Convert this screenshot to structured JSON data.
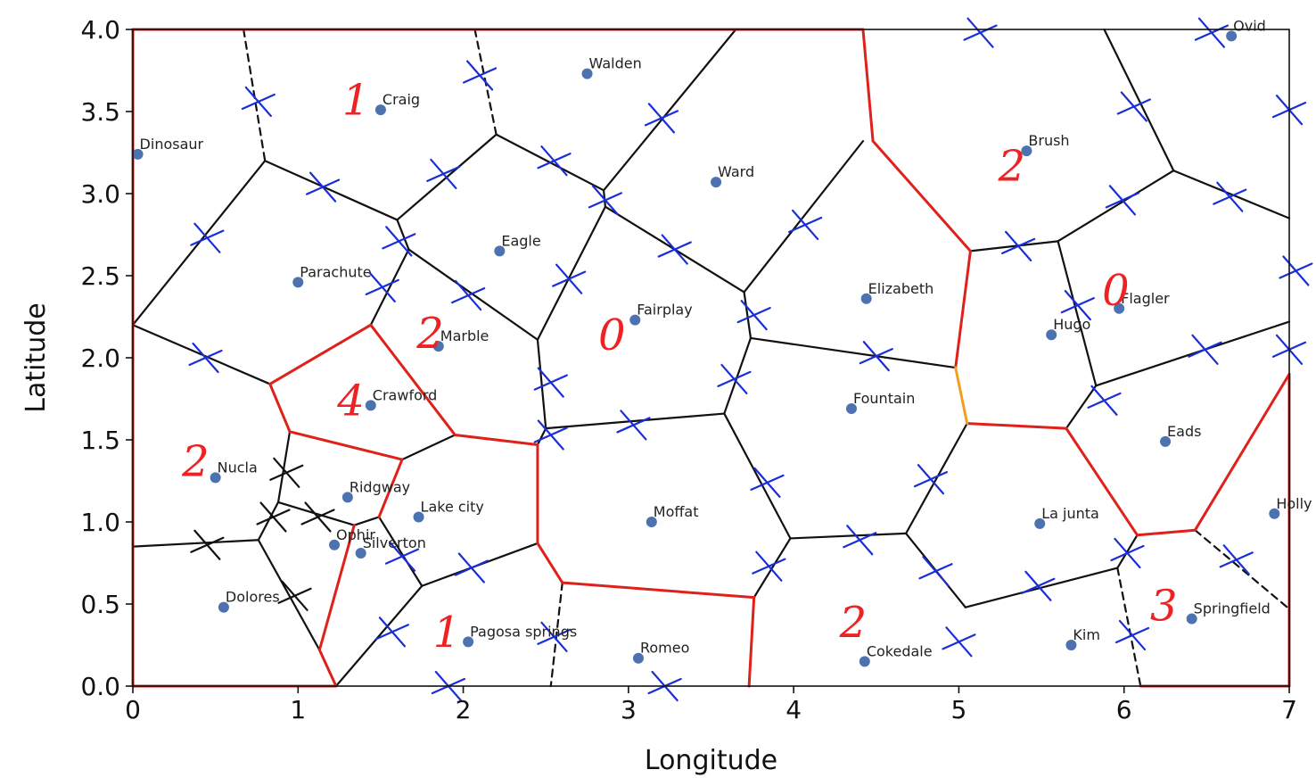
{
  "chart_data": {
    "type": "scatter",
    "xlabel": "Longitude",
    "ylabel": "Latitude",
    "xlim": [
      0,
      7
    ],
    "ylim": [
      0,
      4
    ],
    "xticks": [
      "0",
      "1",
      "2",
      "3",
      "4",
      "5",
      "6",
      "7"
    ],
    "yticks": [
      "0.0",
      "0.5",
      "1.0",
      "1.5",
      "2.0",
      "2.5",
      "3.0",
      "3.5",
      "4.0"
    ],
    "xtick_values": [
      0,
      1,
      2,
      3,
      4,
      5,
      6,
      7
    ],
    "ytick_values": [
      0,
      0.5,
      1,
      1.5,
      2,
      2.5,
      3,
      3.5,
      4
    ],
    "grid": false,
    "point_color": "#4c72b0",
    "points": [
      {
        "name": "Dinosaur",
        "x": 0.03,
        "y": 3.24
      },
      {
        "name": "Craig",
        "x": 1.5,
        "y": 3.51
      },
      {
        "name": "Walden",
        "x": 2.75,
        "y": 3.73
      },
      {
        "name": "Ovid",
        "x": 6.65,
        "y": 3.96
      },
      {
        "name": "Brush",
        "x": 5.41,
        "y": 3.26
      },
      {
        "name": "Ward",
        "x": 3.53,
        "y": 3.07
      },
      {
        "name": "Eagle",
        "x": 2.22,
        "y": 2.65
      },
      {
        "name": "Parachute",
        "x": 1.0,
        "y": 2.46
      },
      {
        "name": "Elizabeth",
        "x": 4.44,
        "y": 2.36
      },
      {
        "name": "Flagler",
        "x": 5.97,
        "y": 2.3
      },
      {
        "name": "Fairplay",
        "x": 3.04,
        "y": 2.23
      },
      {
        "name": "Hugo",
        "x": 5.56,
        "y": 2.14
      },
      {
        "name": "Marble",
        "x": 1.85,
        "y": 2.07
      },
      {
        "name": "Crawford",
        "x": 1.44,
        "y": 1.71
      },
      {
        "name": "Fountain",
        "x": 4.35,
        "y": 1.69
      },
      {
        "name": "Eads",
        "x": 6.25,
        "y": 1.49
      },
      {
        "name": "Nucla",
        "x": 0.5,
        "y": 1.27
      },
      {
        "name": "Ridgway",
        "x": 1.3,
        "y": 1.15
      },
      {
        "name": "Holly",
        "x": 6.91,
        "y": 1.05
      },
      {
        "name": "Lake city",
        "x": 1.73,
        "y": 1.03
      },
      {
        "name": "Moffat",
        "x": 3.14,
        "y": 1.0
      },
      {
        "name": "La junta",
        "x": 5.49,
        "y": 0.99
      },
      {
        "name": "Ophir",
        "x": 1.22,
        "y": 0.86
      },
      {
        "name": "Silverton",
        "x": 1.38,
        "y": 0.81
      },
      {
        "name": "Dolores",
        "x": 0.55,
        "y": 0.48
      },
      {
        "name": "Springfield",
        "x": 6.41,
        "y": 0.41
      },
      {
        "name": "Pagosa springs",
        "x": 2.03,
        "y": 0.27
      },
      {
        "name": "Kim",
        "x": 5.68,
        "y": 0.25
      },
      {
        "name": "Romeo",
        "x": 3.06,
        "y": 0.17
      },
      {
        "name": "Cokedale",
        "x": 4.43,
        "y": 0.15
      }
    ],
    "voronoi_edges_solid": [
      [
        [
          0,
          2.2
        ],
        [
          0.8,
          3.2
        ]
      ],
      [
        [
          0.8,
          3.2
        ],
        [
          1.6,
          2.84
        ]
      ],
      [
        [
          1.6,
          2.84
        ],
        [
          2.2,
          3.36
        ]
      ],
      [
        [
          2.2,
          3.36
        ],
        [
          2.85,
          3.02
        ]
      ],
      [
        [
          2.85,
          3.02
        ],
        [
          3.65,
          4.0
        ]
      ],
      [
        [
          1.6,
          2.84
        ],
        [
          1.67,
          2.66
        ]
      ],
      [
        [
          1.67,
          2.66
        ],
        [
          1.44,
          2.2
        ]
      ],
      [
        [
          1.67,
          2.66
        ],
        [
          2.45,
          2.11
        ]
      ],
      [
        [
          2.45,
          2.11
        ],
        [
          2.86,
          2.92
        ]
      ],
      [
        [
          2.86,
          2.92
        ],
        [
          2.85,
          3.02
        ]
      ],
      [
        [
          2.86,
          2.92
        ],
        [
          3.7,
          2.4
        ]
      ],
      [
        [
          3.7,
          2.4
        ],
        [
          4.42,
          3.32
        ]
      ],
      [
        [
          3.7,
          2.4
        ],
        [
          3.74,
          2.12
        ]
      ],
      [
        [
          3.74,
          2.12
        ],
        [
          4.98,
          1.94
        ]
      ],
      [
        [
          3.74,
          2.12
        ],
        [
          3.58,
          1.66
        ]
      ],
      [
        [
          2.45,
          2.11
        ],
        [
          2.5,
          1.57
        ]
      ],
      [
        [
          2.5,
          1.57
        ],
        [
          3.58,
          1.66
        ]
      ],
      [
        [
          3.58,
          1.66
        ],
        [
          3.98,
          0.9
        ]
      ],
      [
        [
          3.98,
          0.9
        ],
        [
          4.68,
          0.93
        ]
      ],
      [
        [
          3.98,
          0.9
        ],
        [
          3.76,
          0.54
        ]
      ],
      [
        [
          4.68,
          0.93
        ],
        [
          5.05,
          1.6
        ]
      ],
      [
        [
          4.68,
          0.93
        ],
        [
          5.04,
          0.48
        ]
      ],
      [
        [
          5.04,
          0.48
        ],
        [
          5.96,
          0.72
        ]
      ],
      [
        [
          5.96,
          0.72
        ],
        [
          6.08,
          0.92
        ]
      ],
      [
        [
          0,
          2.2
        ],
        [
          0.83,
          1.84
        ]
      ],
      [
        [
          0.83,
          1.84
        ],
        [
          0.95,
          1.55
        ]
      ],
      [
        [
          0.95,
          1.55
        ],
        [
          0.88,
          1.12
        ]
      ],
      [
        [
          0.88,
          1.12
        ],
        [
          0.76,
          0.89
        ]
      ],
      [
        [
          0.76,
          0.89
        ],
        [
          0,
          0.85
        ]
      ],
      [
        [
          0.76,
          0.89
        ],
        [
          1.13,
          0.22
        ]
      ],
      [
        [
          0.88,
          1.12
        ],
        [
          1.34,
          0.98
        ]
      ],
      [
        [
          1.34,
          0.98
        ],
        [
          1.49,
          1.03
        ]
      ],
      [
        [
          1.49,
          1.03
        ],
        [
          1.63,
          1.38
        ]
      ],
      [
        [
          1.49,
          1.03
        ],
        [
          1.75,
          0.61
        ]
      ],
      [
        [
          1.75,
          0.61
        ],
        [
          1.23,
          0.0
        ]
      ],
      [
        [
          1.75,
          0.61
        ],
        [
          2.45,
          0.87
        ]
      ],
      [
        [
          1.63,
          1.38
        ],
        [
          1.95,
          1.53
        ]
      ],
      [
        [
          1.95,
          1.53
        ],
        [
          2.45,
          1.47
        ]
      ],
      [
        [
          2.45,
          1.47
        ],
        [
          2.5,
          1.57
        ]
      ],
      [
        [
          3.74,
          2.12
        ],
        [
          3.74,
          2.12
        ]
      ],
      [
        [
          5.6,
          2.71
        ],
        [
          5.07,
          2.65
        ]
      ],
      [
        [
          5.6,
          2.71
        ],
        [
          6.3,
          3.14
        ]
      ],
      [
        [
          5.6,
          2.71
        ],
        [
          5.83,
          1.83
        ]
      ],
      [
        [
          5.83,
          1.83
        ],
        [
          5.65,
          1.57
        ]
      ],
      [
        [
          5.83,
          1.83
        ],
        [
          7.0,
          2.22
        ]
      ],
      [
        [
          6.3,
          3.14
        ],
        [
          7.0,
          2.85
        ]
      ],
      [
        [
          6.3,
          3.14
        ],
        [
          5.88,
          4.0
        ]
      ]
    ],
    "voronoi_edges_dashed": [
      [
        [
          0.67,
          4.0
        ],
        [
          0.8,
          3.2
        ]
      ],
      [
        [
          2.07,
          4.0
        ],
        [
          2.2,
          3.36
        ]
      ],
      [
        [
          2.6,
          0.63
        ],
        [
          2.53,
          0.0
        ]
      ],
      [
        [
          5.96,
          0.72
        ],
        [
          6.1,
          0.0
        ]
      ],
      [
        [
          6.43,
          0.95
        ],
        [
          7.0,
          0.47
        ]
      ]
    ],
    "red_edges": [
      [
        [
          0,
          4.0
        ],
        [
          4.42,
          4.0
        ]
      ],
      [
        [
          4.42,
          4.0
        ],
        [
          4.48,
          3.32
        ]
      ],
      [
        [
          4.48,
          3.32
        ],
        [
          5.07,
          2.65
        ]
      ],
      [
        [
          5.07,
          2.65
        ],
        [
          4.98,
          1.94
        ]
      ],
      [
        [
          5.05,
          1.6
        ],
        [
          5.65,
          1.57
        ]
      ],
      [
        [
          5.65,
          1.57
        ],
        [
          6.08,
          0.92
        ]
      ],
      [
        [
          6.08,
          0.92
        ],
        [
          6.43,
          0.95
        ]
      ],
      [
        [
          6.43,
          0.95
        ],
        [
          7.0,
          1.9
        ]
      ],
      [
        [
          7.0,
          1.9
        ],
        [
          7.0,
          0.0
        ]
      ],
      [
        [
          7.0,
          0.0
        ],
        [
          6.1,
          0.0
        ]
      ],
      [
        [
          3.76,
          0.54
        ],
        [
          3.73,
          0.0
        ]
      ],
      [
        [
          3.76,
          0.54
        ],
        [
          2.6,
          0.63
        ]
      ],
      [
        [
          2.6,
          0.63
        ],
        [
          2.45,
          0.87
        ]
      ],
      [
        [
          2.45,
          0.87
        ],
        [
          2.45,
          1.47
        ]
      ],
      [
        [
          2.45,
          1.47
        ],
        [
          1.95,
          1.53
        ]
      ],
      [
        [
          1.95,
          1.53
        ],
        [
          1.44,
          2.2
        ]
      ],
      [
        [
          1.44,
          2.2
        ],
        [
          0.83,
          1.84
        ]
      ],
      [
        [
          0.83,
          1.84
        ],
        [
          0.95,
          1.55
        ]
      ],
      [
        [
          0.95,
          1.55
        ],
        [
          1.63,
          1.38
        ]
      ],
      [
        [
          1.63,
          1.38
        ],
        [
          1.49,
          1.03
        ]
      ],
      [
        [
          1.34,
          0.98
        ],
        [
          1.13,
          0.22
        ]
      ],
      [
        [
          1.13,
          0.22
        ],
        [
          1.23,
          0.0
        ]
      ],
      [
        [
          1.23,
          0.0
        ],
        [
          0,
          0.0
        ]
      ],
      [
        [
          0,
          0.0
        ],
        [
          0,
          4.0
        ]
      ]
    ],
    "orange_edges": [
      [
        [
          4.98,
          1.94
        ],
        [
          5.05,
          1.6
        ]
      ]
    ],
    "handwritten_marks": [
      {
        "text": "1",
        "x": 1.35,
        "y": 3.48
      },
      {
        "text": "2",
        "x": 5.32,
        "y": 3.08
      },
      {
        "text": "2",
        "x": 1.8,
        "y": 2.06
      },
      {
        "text": "0",
        "x": 2.9,
        "y": 2.05
      },
      {
        "text": "0",
        "x": 5.95,
        "y": 2.32
      },
      {
        "text": "4",
        "x": 1.32,
        "y": 1.65
      },
      {
        "text": "2",
        "x": 0.38,
        "y": 1.28
      },
      {
        "text": "3",
        "x": 6.24,
        "y": 0.4
      },
      {
        "text": "2",
        "x": 4.36,
        "y": 0.3
      },
      {
        "text": "1",
        "x": 1.9,
        "y": 0.24
      }
    ],
    "blue_crosses": [
      [
        0.76,
        3.56
      ],
      [
        2.1,
        3.72
      ],
      [
        3.2,
        3.46
      ],
      [
        5.13,
        3.98
      ],
      [
        6.53,
        3.98
      ],
      [
        1.15,
        3.04
      ],
      [
        1.88,
        3.12
      ],
      [
        2.55,
        3.2
      ],
      [
        2.86,
        2.96
      ],
      [
        0.45,
        2.73
      ],
      [
        1.61,
        2.71
      ],
      [
        3.28,
        2.66
      ],
      [
        4.07,
        2.81
      ],
      [
        5.36,
        2.68
      ],
      [
        6.06,
        3.53
      ],
      [
        7.0,
        3.51
      ],
      [
        6.64,
        2.98
      ],
      [
        5.99,
        2.96
      ],
      [
        1.51,
        2.43
      ],
      [
        2.03,
        2.38
      ],
      [
        2.64,
        2.48
      ],
      [
        3.76,
        2.26
      ],
      [
        5.72,
        2.32
      ],
      [
        7.04,
        2.53
      ],
      [
        0.44,
        2.0
      ],
      [
        4.5,
        2.01
      ],
      [
        6.49,
        2.05
      ],
      [
        7.0,
        2.05
      ],
      [
        2.53,
        1.85
      ],
      [
        3.64,
        1.87
      ],
      [
        5.88,
        1.74
      ],
      [
        2.53,
        1.53
      ],
      [
        3.03,
        1.59
      ],
      [
        3.84,
        1.24
      ],
      [
        4.83,
        1.26
      ],
      [
        1.63,
        0.79
      ],
      [
        2.05,
        0.72
      ],
      [
        4.4,
        0.89
      ],
      [
        4.86,
        0.7
      ],
      [
        6.02,
        0.81
      ],
      [
        6.68,
        0.77
      ],
      [
        5.48,
        0.61
      ],
      [
        1.57,
        0.33
      ],
      [
        2.55,
        0.3
      ],
      [
        5.0,
        0.27
      ],
      [
        6.05,
        0.31
      ],
      [
        1.91,
        0.0
      ],
      [
        3.22,
        0.0
      ],
      [
        3.85,
        0.73
      ]
    ],
    "black_crosses": [
      [
        0.93,
        1.3
      ],
      [
        0.85,
        1.03
      ],
      [
        1.12,
        1.03
      ],
      [
        0.45,
        0.86
      ],
      [
        0.98,
        0.55
      ]
    ],
    "colors": {
      "voronoi": "#111111",
      "red_boundary": "#e0201a",
      "orange_edge": "#f0a020",
      "blue_cross": "#1a2ed8",
      "black_cross": "#111111",
      "handwriting": "#e0201a"
    }
  }
}
